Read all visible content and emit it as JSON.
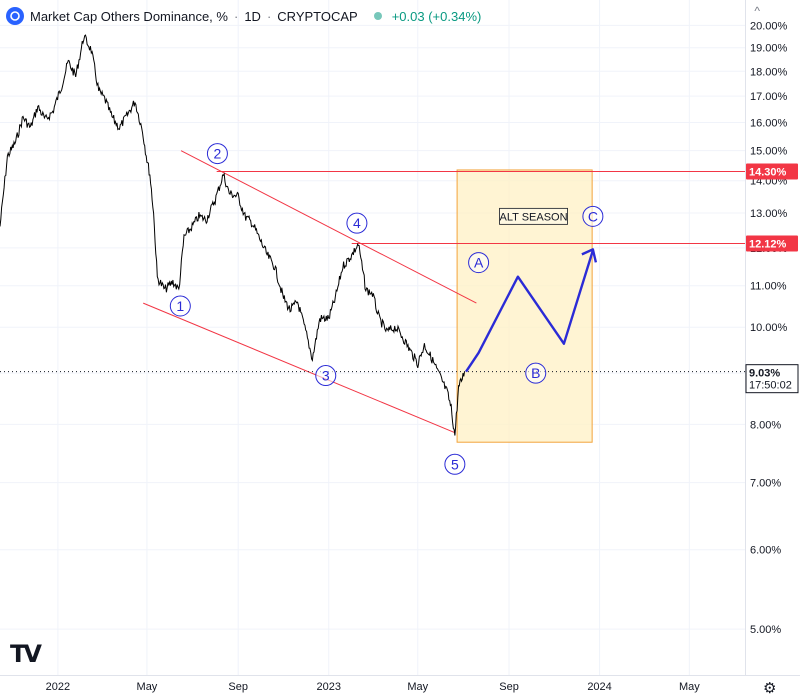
{
  "header": {
    "title": "Market Cap Others Dominance, %",
    "interval": "1D",
    "source": "CRYPTOCAP",
    "change": "+0.03 (+0.34%)"
  },
  "colors": {
    "price": "#000000",
    "resistance": "#f23645",
    "wave": "#2b2bd6",
    "box_fill": "#fff0c4",
    "box_stroke": "#f2a33a",
    "grid": "#f0f3fa",
    "axis_text": "#131722"
  },
  "icons": {
    "tradingview_logo": "tradingview-logo",
    "settings": "gear-icon",
    "symbol_logo": "cryptocap-logo",
    "collapse": "caret-icon"
  },
  "tv_logo_text": "TV",
  "chart_data": {
    "type": "line",
    "title": "Market Cap Others Dominance, % · 1D · CRYPTOCAP",
    "y_scale": "log",
    "y_unit": "%",
    "ylim": [
      4.5,
      21.2
    ],
    "xlim": [
      "2021-10-15",
      "2024-07-15"
    ],
    "grid": true,
    "y_ticks": [
      "20.00%",
      "19.00%",
      "18.00%",
      "17.00%",
      "16.00%",
      "15.00%",
      "14.00%",
      "13.00%",
      "12.00%",
      "11.00%",
      "10.00%",
      "9.00%",
      "8.00%",
      "7.00%",
      "6.00%",
      "5.00%"
    ],
    "x_ticks": [
      {
        "label": "2022",
        "date": "2022-01-01"
      },
      {
        "label": "May",
        "date": "2022-05-01"
      },
      {
        "label": "Sep",
        "date": "2022-09-01"
      },
      {
        "label": "2023",
        "date": "2023-01-01"
      },
      {
        "label": "May",
        "date": "2023-05-01"
      },
      {
        "label": "Sep",
        "date": "2023-09-01"
      },
      {
        "label": "2024",
        "date": "2024-01-01"
      },
      {
        "label": "May",
        "date": "2024-05-01"
      }
    ],
    "price_series": {
      "name": "Market Cap Others Dominance",
      "x": [
        "2021-10-15",
        "2021-10-25",
        "2021-11-05",
        "2021-11-15",
        "2021-11-25",
        "2021-12-05",
        "2021-12-15",
        "2021-12-25",
        "2022-01-05",
        "2022-01-15",
        "2022-01-25",
        "2022-02-05",
        "2022-02-15",
        "2022-02-25",
        "2022-03-05",
        "2022-03-15",
        "2022-03-25",
        "2022-04-05",
        "2022-04-15",
        "2022-04-25",
        "2022-05-01",
        "2022-05-05",
        "2022-05-10",
        "2022-05-15",
        "2022-05-25",
        "2022-06-05",
        "2022-06-13",
        "2022-06-20",
        "2022-07-01",
        "2022-07-10",
        "2022-07-20",
        "2022-08-01",
        "2022-08-12",
        "2022-08-20",
        "2022-09-01",
        "2022-09-10",
        "2022-09-20",
        "2022-10-01",
        "2022-10-10",
        "2022-10-20",
        "2022-11-01",
        "2022-11-10",
        "2022-11-20",
        "2022-12-01",
        "2022-12-10",
        "2022-12-20",
        "2023-01-01",
        "2023-01-10",
        "2023-01-20",
        "2023-02-01",
        "2023-02-10",
        "2023-02-20",
        "2023-03-01",
        "2023-03-10",
        "2023-03-20",
        "2023-04-01",
        "2023-04-10",
        "2023-04-20",
        "2023-05-01",
        "2023-05-10",
        "2023-05-20",
        "2023-06-01",
        "2023-06-10",
        "2023-06-15",
        "2023-06-20",
        "2023-06-25",
        "2023-06-30",
        "2023-07-03"
      ],
      "y": [
        12.6,
        14.8,
        15.3,
        16.2,
        15.8,
        16.6,
        16.1,
        16.4,
        17.3,
        18.4,
        17.8,
        19.5,
        18.9,
        17.2,
        16.9,
        16.2,
        15.8,
        16.3,
        16.8,
        15.7,
        14.7,
        14.2,
        13.0,
        11.2,
        10.9,
        11.1,
        10.9,
        12.3,
        12.6,
        12.9,
        12.8,
        13.4,
        14.2,
        13.6,
        13.5,
        12.9,
        12.7,
        12.2,
        11.8,
        11.5,
        10.7,
        10.4,
        10.6,
        9.9,
        9.3,
        10.2,
        10.2,
        10.7,
        11.5,
        11.8,
        12.1,
        10.9,
        10.8,
        10.2,
        9.9,
        10.0,
        9.8,
        9.5,
        9.2,
        9.6,
        9.3,
        8.9,
        8.6,
        8.3,
        7.8,
        8.7,
        8.9,
        9.03
      ]
    },
    "last_value": "9.03%",
    "countdown": "17:50:02",
    "horizontal_levels": [
      {
        "value": 14.3,
        "label": "14.30%",
        "x_start": "2022-08-03"
      },
      {
        "value": 12.12,
        "label": "12.12%",
        "x_start": "2023-02-01"
      }
    ],
    "trendlines": [
      {
        "from": {
          "x": "2022-04-26",
          "y": 10.57
        },
        "to": {
          "x": "2023-06-20",
          "y": 7.85
        }
      },
      {
        "from": {
          "x": "2022-06-16",
          "y": 15.0
        },
        "to": {
          "x": "2023-07-19",
          "y": 10.57
        }
      }
    ],
    "wave_labels": [
      {
        "label": "1",
        "x": "2022-06-15",
        "y": 10.5
      },
      {
        "label": "2",
        "x": "2022-08-04",
        "y": 14.9
      },
      {
        "label": "3",
        "x": "2022-12-28",
        "y": 8.95
      },
      {
        "label": "4",
        "x": "2023-02-08",
        "y": 12.7
      },
      {
        "label": "5",
        "x": "2023-06-20",
        "y": 7.3
      },
      {
        "label": "A",
        "x": "2023-07-22",
        "y": 11.6
      },
      {
        "label": "B",
        "x": "2023-10-07",
        "y": 9.0
      },
      {
        "label": "C",
        "x": "2023-12-23",
        "y": 12.9
      }
    ],
    "projection": {
      "name": "ABC projection",
      "x": [
        "2023-07-05",
        "2023-07-22",
        "2023-09-13",
        "2023-11-14",
        "2023-12-23"
      ],
      "y": [
        9.03,
        9.43,
        11.23,
        9.63,
        11.93
      ]
    },
    "projection_arrow_head": {
      "x": "2023-12-23",
      "y": 11.93
    },
    "box": {
      "x_start": "2023-06-23",
      "x_end": "2023-12-22",
      "y_top": 14.35,
      "y_bottom": 7.68
    },
    "annotations": [
      {
        "text": "ALT SEASON",
        "x": "2023-10-04",
        "y": 12.9
      }
    ]
  }
}
